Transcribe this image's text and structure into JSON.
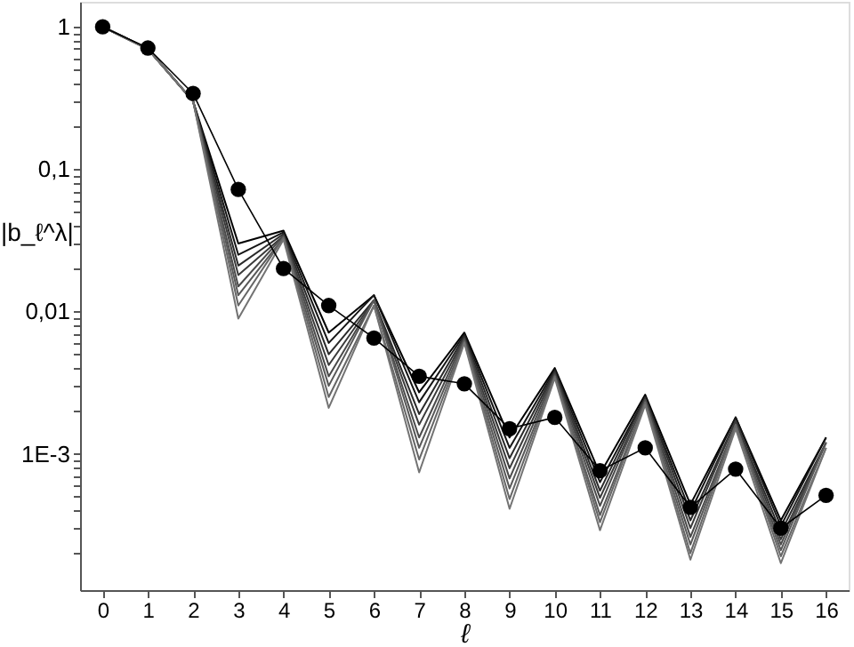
{
  "chart_data": {
    "type": "line",
    "xlabel": "ℓ",
    "ylabel": "|b_ℓ^λ|",
    "log": true,
    "grid": false,
    "marker": "none",
    "line_style": "solid",
    "x": [
      0,
      1,
      2,
      3,
      4,
      5,
      6,
      7,
      8,
      9,
      10,
      11,
      12,
      13,
      14,
      15,
      16
    ],
    "xlim": [
      -0.5,
      16.5
    ],
    "xticks": [
      0,
      1,
      2,
      3,
      4,
      5,
      6,
      7,
      8,
      9,
      10,
      11,
      12,
      13,
      14,
      15,
      16
    ],
    "ylim": [
      0.00011,
      1.5
    ],
    "yticks": [
      {
        "value": 0.0002,
        "label": null
      },
      {
        "value": 0.0003,
        "label": null
      },
      {
        "value": 0.0004,
        "label": null
      },
      {
        "value": 0.0005,
        "label": null
      },
      {
        "value": 0.0006,
        "label": null
      },
      {
        "value": 0.0007,
        "label": null
      },
      {
        "value": 0.0008,
        "label": null
      },
      {
        "value": 0.0009,
        "label": null
      },
      {
        "value": 0.001,
        "label": "1E-3"
      },
      {
        "value": 0.002,
        "label": null
      },
      {
        "value": 0.003,
        "label": null
      },
      {
        "value": 0.004,
        "label": null
      },
      {
        "value": 0.005,
        "label": null
      },
      {
        "value": 0.006,
        "label": null
      },
      {
        "value": 0.007,
        "label": null
      },
      {
        "value": 0.008,
        "label": null
      },
      {
        "value": 0.009,
        "label": null
      },
      {
        "value": 0.01,
        "label": "0,01"
      },
      {
        "value": 0.02,
        "label": null
      },
      {
        "value": 0.03,
        "label": null
      },
      {
        "value": 0.04,
        "label": null
      },
      {
        "value": 0.05,
        "label": null
      },
      {
        "value": 0.06,
        "label": null
      },
      {
        "value": 0.07,
        "label": null
      },
      {
        "value": 0.08,
        "label": null
      },
      {
        "value": 0.09,
        "label": null
      },
      {
        "value": 0.1,
        "label": "0,1"
      },
      {
        "value": 0.2,
        "label": null
      },
      {
        "value": 0.3,
        "label": null
      },
      {
        "value": 0.4,
        "label": null
      },
      {
        "value": 0.5,
        "label": null
      },
      {
        "value": 0.6,
        "label": null
      },
      {
        "value": 0.7,
        "label": null
      },
      {
        "value": 0.8,
        "label": null
      },
      {
        "value": 0.9,
        "label": null
      },
      {
        "value": 1,
        "label": "1"
      }
    ],
    "series": [
      {
        "color": "#000000",
        "values": [
          1,
          0.7,
          0.3,
          0.03,
          0.037,
          0.0071,
          0.013,
          0.0027,
          0.0071,
          0.0013,
          0.004,
          0.00072,
          0.0026,
          0.00044,
          0.0018,
          0.00034,
          0.0013
        ]
      },
      {
        "color": "#151515",
        "values": [
          1,
          0.7,
          0.3,
          0.025,
          0.036,
          0.006,
          0.013,
          0.0023,
          0.0069,
          0.0011,
          0.0039,
          0.00063,
          0.0025,
          0.00039,
          0.0018,
          0.00031,
          0.0013
        ]
      },
      {
        "color": "#2a2a2a",
        "values": [
          1,
          0.7,
          0.3,
          0.021,
          0.035,
          0.005,
          0.012,
          0.0019,
          0.0067,
          0.00093,
          0.0038,
          0.00055,
          0.0025,
          0.00034,
          0.0017,
          0.00028,
          0.0012
        ]
      },
      {
        "color": "#3a3a3a",
        "values": [
          1,
          0.7,
          0.3,
          0.018,
          0.034,
          0.0042,
          0.012,
          0.0016,
          0.0065,
          0.00079,
          0.0037,
          0.00049,
          0.0024,
          0.0003,
          0.0017,
          0.00025,
          0.0012
        ]
      },
      {
        "color": "#4a4a4a",
        "values": [
          1,
          0.7,
          0.3,
          0.015,
          0.034,
          0.0035,
          0.012,
          0.0013,
          0.0064,
          0.00067,
          0.0036,
          0.00043,
          0.0024,
          0.00026,
          0.0016,
          0.00023,
          0.0012
        ]
      },
      {
        "color": "#585858",
        "values": [
          1,
          0.7,
          0.3,
          0.013,
          0.033,
          0.003,
          0.012,
          0.0011,
          0.0062,
          0.00057,
          0.0035,
          0.00037,
          0.0023,
          0.00023,
          0.0016,
          0.00021,
          0.0012
        ]
      },
      {
        "color": "#666666",
        "values": [
          1,
          0.7,
          0.3,
          0.011,
          0.033,
          0.0025,
          0.011,
          0.00091,
          0.0061,
          0.00048,
          0.0035,
          0.00033,
          0.0023,
          0.0002,
          0.0016,
          0.00019,
          0.0011
        ]
      },
      {
        "color": "#737373",
        "values": [
          1,
          0.7,
          0.3,
          0.0089,
          0.032,
          0.0021,
          0.011,
          0.00074,
          0.006,
          0.00041,
          0.0034,
          0.00029,
          0.0022,
          0.00018,
          0.0015,
          0.00017,
          0.0011
        ]
      },
      {
        "color": "#000000",
        "marker": "circle",
        "values": [
          1,
          0.71,
          0.34,
          0.072,
          0.02,
          0.011,
          0.0065,
          0.0035,
          0.0031,
          0.0015,
          0.0018,
          0.00076,
          0.0011,
          0.00042,
          0.00078,
          0.0003,
          0.00051
        ]
      }
    ]
  }
}
